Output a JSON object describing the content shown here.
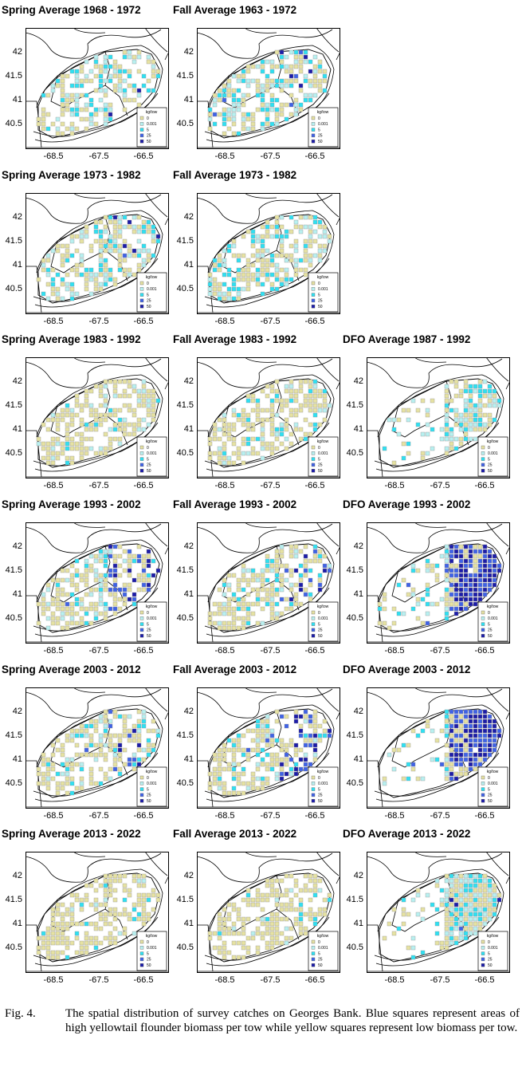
{
  "figure": {
    "panels": [
      {
        "title": "Spring Average 1968 - 1972",
        "col": 0,
        "row": 0,
        "profile": "spring_early"
      },
      {
        "title": "Fall Average 1963 - 1972",
        "col": 1,
        "row": 0,
        "profile": "fall_early"
      },
      {
        "title": "Spring Average 1973 - 1982",
        "col": 0,
        "row": 1,
        "profile": "spring_mid"
      },
      {
        "title": "Fall Average 1973 - 1982",
        "col": 1,
        "row": 1,
        "profile": "fall_mid"
      },
      {
        "title": "Spring Average 1983 - 1992",
        "col": 0,
        "row": 2,
        "profile": "low"
      },
      {
        "title": "Fall Average 1983 - 1992",
        "col": 1,
        "row": 2,
        "profile": "low"
      },
      {
        "title": "DFO Average 1987 - 1992",
        "col": 2,
        "row": 2,
        "profile": "dfo_low"
      },
      {
        "title": "Spring Average 1993 - 2002",
        "col": 0,
        "row": 3,
        "profile": "east_high"
      },
      {
        "title": "Fall Average 1993 - 2002",
        "col": 1,
        "row": 3,
        "profile": "east_mid"
      },
      {
        "title": "DFO Average 1993 - 2002",
        "col": 2,
        "row": 3,
        "profile": "dfo_high"
      },
      {
        "title": "Spring Average 2003 - 2012",
        "col": 0,
        "row": 4,
        "profile": "east_mid"
      },
      {
        "title": "Fall Average 2003 - 2012",
        "col": 1,
        "row": 4,
        "profile": "east_high"
      },
      {
        "title": "DFO Average 2003 - 2012",
        "col": 2,
        "row": 4,
        "profile": "dfo_high"
      },
      {
        "title": "Spring Average 2013 - 2022",
        "col": 0,
        "row": 5,
        "profile": "very_low"
      },
      {
        "title": "Fall Average 2013 - 2022",
        "col": 1,
        "row": 5,
        "profile": "very_low"
      },
      {
        "title": "DFO Average 2013 - 2022",
        "col": 2,
        "row": 5,
        "profile": "dfo_late"
      }
    ],
    "y_ticks": [
      "42",
      "41.5",
      "41",
      "40.5"
    ],
    "x_ticks": [
      "-68.5",
      "-67.5",
      "-66.5"
    ],
    "legend": {
      "title": "kg/tow",
      "levels": [
        {
          "label": "0",
          "color": "#e6e2a2"
        },
        {
          "label": "0.001",
          "color": "#b8f0f0"
        },
        {
          "label": "5",
          "color": "#2fe0f2"
        },
        {
          "label": "25",
          "color": "#3f62e6"
        },
        {
          "label": "50",
          "color": "#1c1ca8"
        }
      ]
    }
  },
  "caption": {
    "label": "Fig. 4.",
    "text": "The spatial distribution of survey catches on Georges Bank. Blue squares represent areas of high yellowtail flounder biomass per tow while yellow squares represent low biomass per tow."
  }
}
